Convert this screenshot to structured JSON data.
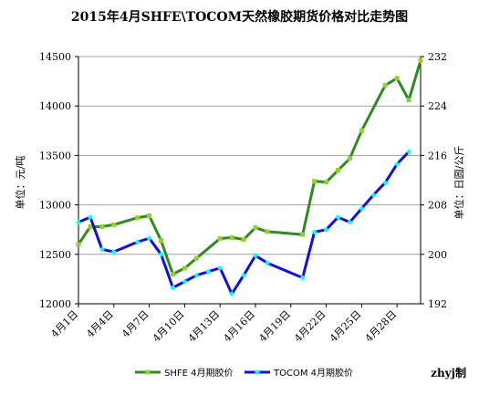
{
  "chart_data": {
    "type": "line",
    "title": "2015年4月SHFE\\TOCOM天然橡胶期货价格对比走势图",
    "ylabel_left": "单位：元/吨",
    "ylabel_right": "单位：日圆/公斤",
    "watermark": "zhyj制",
    "x_ticklabels": [
      "4月1日",
      "4月4日",
      "4月7日",
      "4月10日",
      "4月13日",
      "4月16日",
      "4月19日",
      "4月22日",
      "4月25日",
      "4月28日"
    ],
    "ylim_left": [
      12000,
      14500
    ],
    "yticks_left": [
      12000,
      12500,
      13000,
      13500,
      14000,
      14500
    ],
    "ylim_right": [
      192,
      232
    ],
    "yticks_right": [
      192,
      200,
      208,
      216,
      224,
      232
    ],
    "grid_y": true,
    "legend_position": "bottom",
    "colors": {
      "shfe": "#2e8b1f",
      "shfe_marker": "#9acd32",
      "tocom": "#1010e0",
      "tocom_marker": "#00ffff"
    },
    "series": [
      {
        "name": "SHFE 4月期胶价",
        "axis": "left",
        "x": [
          1,
          2,
          3,
          4,
          6,
          7,
          8,
          9,
          10,
          11,
          13,
          14,
          15,
          16,
          17,
          20,
          21,
          22,
          23,
          24,
          25,
          27,
          28,
          29,
          30
        ],
        "values": [
          12600,
          12780,
          12780,
          12800,
          12870,
          12890,
          12640,
          12300,
          12360,
          12460,
          12660,
          12670,
          12650,
          12770,
          12730,
          12700,
          13240,
          13230,
          13350,
          13470,
          13750,
          14210,
          14280,
          14060,
          14460
        ]
      },
      {
        "name": "TOCOM 4月期胶价",
        "axis": "right",
        "x": [
          1,
          2,
          3,
          4,
          6,
          7,
          8,
          9,
          10,
          11,
          12,
          13,
          14,
          15,
          16,
          17,
          20,
          21,
          22,
          23,
          24,
          25,
          26,
          27,
          28,
          29
        ],
        "values": [
          205.2,
          206.0,
          200.8,
          200.4,
          202.0,
          202.6,
          200.0,
          194.6,
          195.6,
          196.6,
          197.2,
          197.8,
          193.6,
          196.6,
          199.8,
          198.6,
          196.2,
          203.6,
          204.0,
          206.0,
          205.2,
          207.4,
          209.6,
          211.6,
          214.6,
          216.6
        ]
      }
    ]
  }
}
